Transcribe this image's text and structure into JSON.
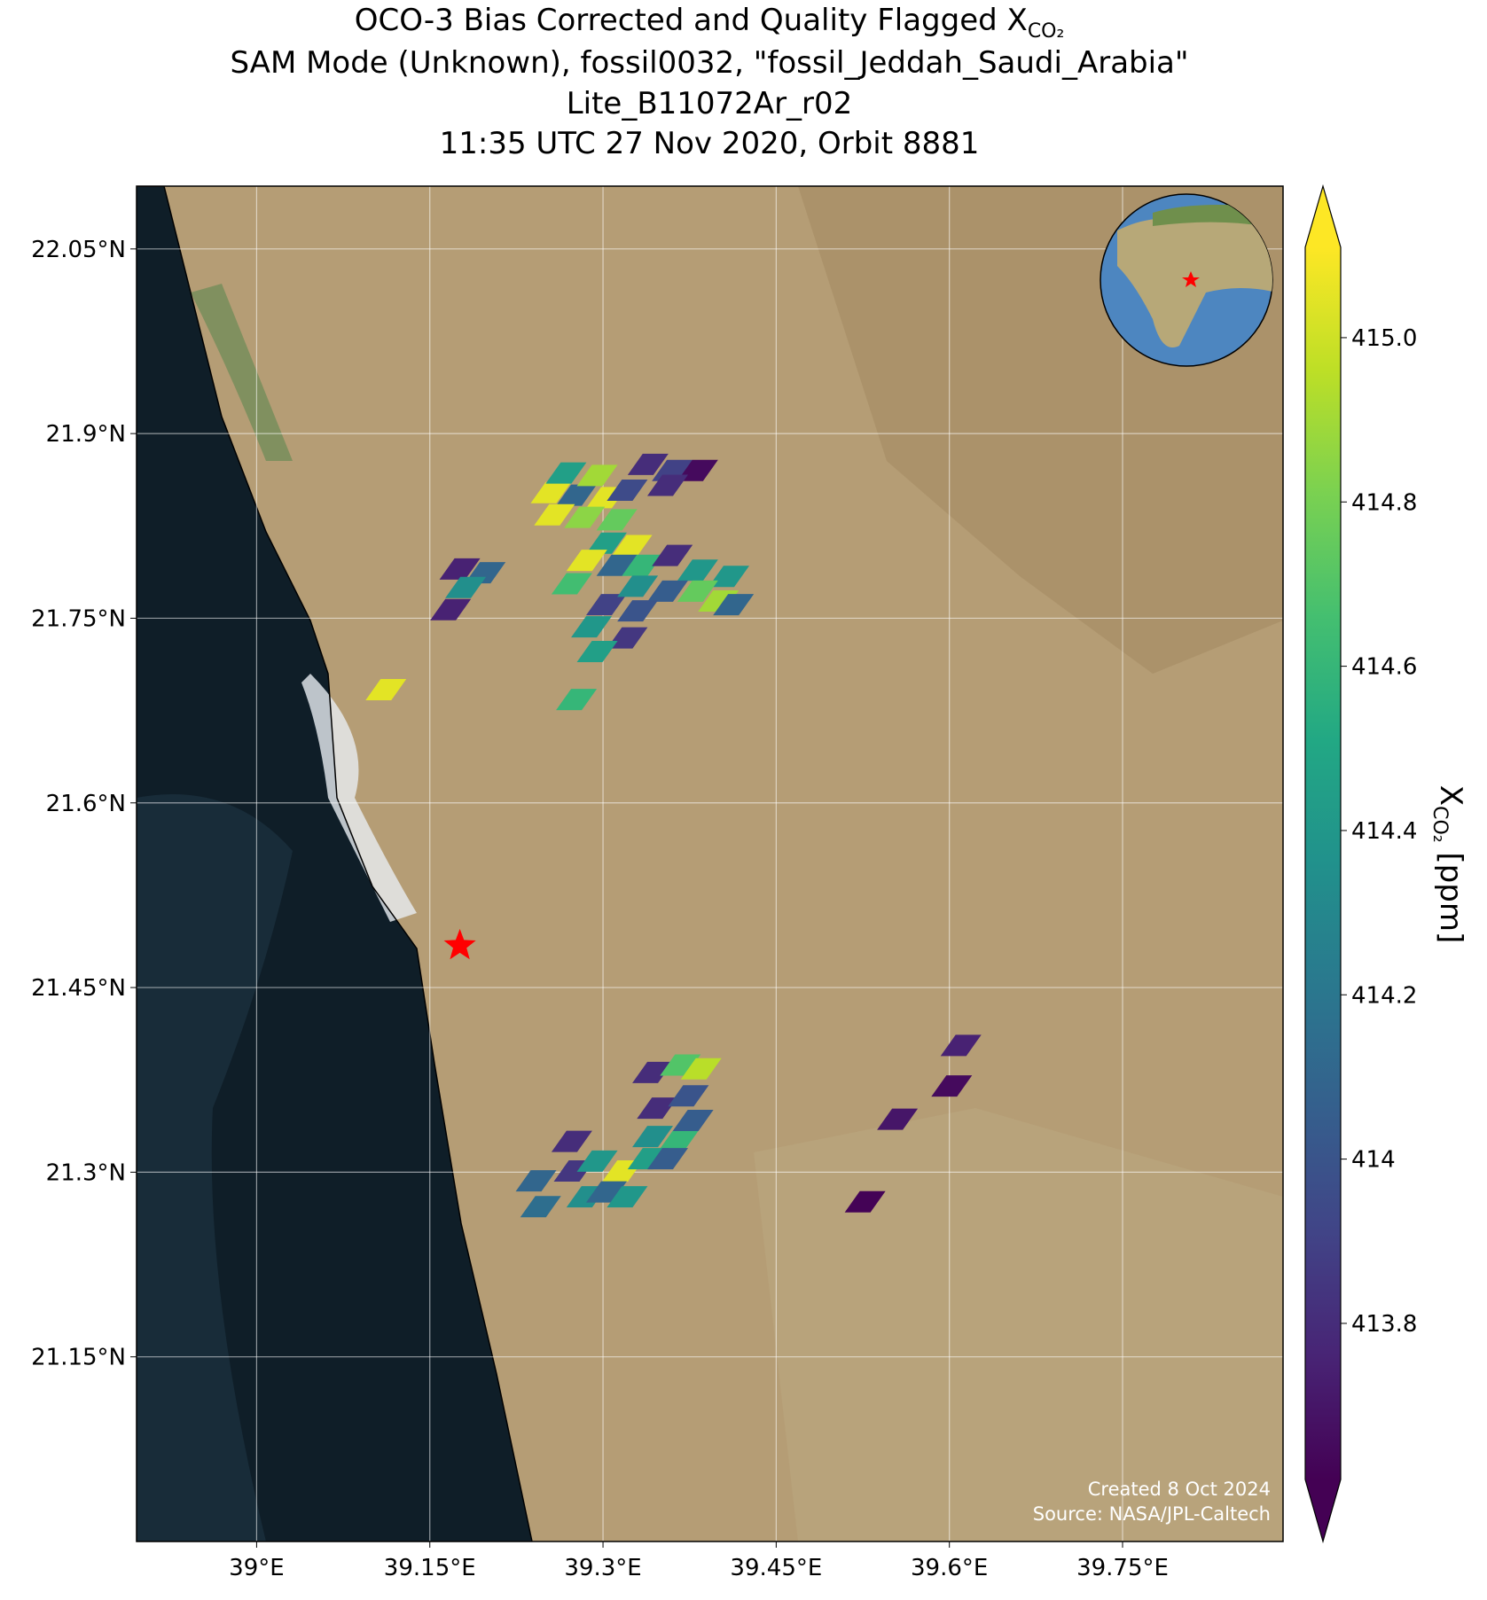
{
  "chart_data": {
    "type": "map",
    "title": [
      {
        "text": "OCO-3 Bias Corrected and Quality Flagged X",
        "subscript": "CO₂"
      },
      {
        "text": "SAM Mode (Unknown), fossil0032, \"fossil_Jeddah_Saudi_Arabia\""
      },
      {
        "text": "Lite_B11072Ar_r02"
      },
      {
        "text": "11:35 UTC 27 Nov 2020, Orbit 8881"
      }
    ],
    "xlim": [
      38.896,
      39.889
    ],
    "ylim": [
      21.0,
      22.101
    ],
    "xticks": [
      {
        "value": 39.0,
        "label": "39°E"
      },
      {
        "value": 39.15,
        "label": "39.15°E"
      },
      {
        "value": 39.3,
        "label": "39.3°E"
      },
      {
        "value": 39.45,
        "label": "39.45°E"
      },
      {
        "value": 39.6,
        "label": "39.6°E"
      },
      {
        "value": 39.75,
        "label": "39.75°E"
      }
    ],
    "yticks": [
      {
        "value": 21.15,
        "label": "21.15°N"
      },
      {
        "value": 21.3,
        "label": "21.3°N"
      },
      {
        "value": 21.45,
        "label": "21.45°N"
      },
      {
        "value": 21.6,
        "label": "21.6°N"
      },
      {
        "value": 21.75,
        "label": "21.75°N"
      },
      {
        "value": 21.9,
        "label": "21.9°N"
      },
      {
        "value": 22.05,
        "label": "22.05°N"
      }
    ],
    "grid": true,
    "colormap": "viridis",
    "clim": [
      413.61,
      415.11
    ],
    "cticks": [
      413.8,
      414.0,
      414.2,
      414.4,
      414.6,
      414.8,
      {
        "value": 415.0,
        "label": "415.0"
      }
    ],
    "colorbar_label": {
      "text": "X",
      "subscript": "CO₂",
      "suffix": " [ppm]"
    },
    "target": {
      "lon": 39.176,
      "lat": 21.484,
      "color": "#ff0000"
    },
    "footprints": {
      "lon": [
        39.255,
        39.277,
        39.303,
        39.268,
        39.295,
        39.339,
        39.36,
        39.382,
        39.321,
        39.356,
        39.258,
        39.284,
        39.312,
        39.303,
        39.325,
        39.286,
        39.273,
        39.312,
        39.334,
        39.36,
        39.382,
        39.409,
        39.303,
        39.33,
        39.356,
        39.382,
        39.4,
        39.413,
        39.33,
        39.29,
        39.321,
        39.295,
        39.277,
        39.176,
        39.198,
        39.181,
        39.168,
        39.112,
        39.343,
        39.367,
        39.385,
        39.347,
        39.374,
        39.343,
        39.365,
        39.378,
        39.273,
        39.275,
        39.295,
        39.317,
        39.339,
        39.286,
        39.303,
        39.321,
        39.242,
        39.246,
        39.356,
        39.61,
        39.602,
        39.555,
        39.527
      ],
      "lat": [
        21.852,
        21.85,
        21.848,
        21.868,
        21.866,
        21.875,
        21.87,
        21.87,
        21.854,
        21.858,
        21.834,
        21.832,
        21.83,
        21.811,
        21.809,
        21.797,
        21.778,
        21.793,
        21.793,
        21.801,
        21.789,
        21.784,
        21.761,
        21.776,
        21.772,
        21.772,
        21.764,
        21.761,
        21.756,
        21.743,
        21.734,
        21.723,
        21.684,
        21.79,
        21.787,
        21.775,
        21.757,
        21.692,
        21.381,
        21.387,
        21.384,
        21.352,
        21.362,
        21.329,
        21.325,
        21.342,
        21.325,
        21.301,
        21.309,
        21.301,
        21.311,
        21.28,
        21.284,
        21.28,
        21.293,
        21.272,
        21.311,
        21.403,
        21.37,
        21.343,
        21.276
      ],
      "values": [
        415.05,
        414.1,
        415.05,
        414.45,
        414.9,
        413.8,
        413.9,
        413.65,
        413.95,
        413.8,
        415.05,
        414.85,
        414.75,
        414.45,
        415.05,
        415.05,
        414.65,
        414.1,
        414.6,
        413.8,
        414.4,
        414.4,
        413.9,
        414.35,
        414.05,
        414.75,
        414.9,
        414.1,
        414.0,
        414.4,
        413.85,
        414.45,
        414.6,
        413.75,
        414.1,
        414.35,
        413.75,
        415.05,
        413.8,
        414.7,
        414.95,
        413.8,
        414.0,
        414.35,
        414.6,
        414.05,
        413.8,
        413.85,
        414.4,
        415.05,
        414.45,
        414.35,
        414.1,
        414.4,
        414.1,
        414.15,
        414.05,
        413.75,
        413.65,
        413.7,
        413.62
      ]
    },
    "credits": [
      "Created 8 Oct 2024",
      "Source: NASA/JPL-Caltech"
    ]
  }
}
